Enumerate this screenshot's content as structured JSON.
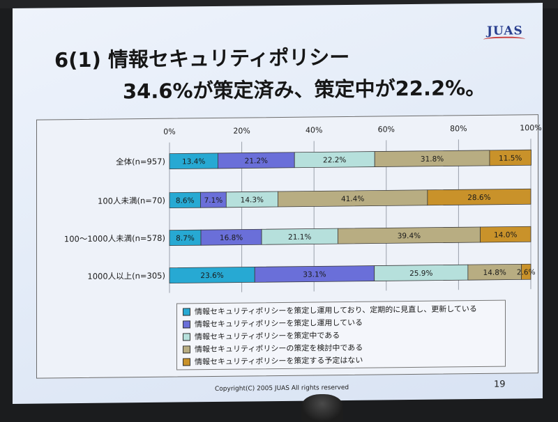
{
  "slide": {
    "title_line1": "6(1) 情報セキュリティポリシー",
    "title_line2": "34.6%が策定済み、策定中が22.2%。",
    "logo": "JUAS",
    "footer": "Copyright(C) 2005 JUAS All rights reserved",
    "page_number": "19"
  },
  "colors": {
    "series": [
      "#27a9d3",
      "#6a6fd9",
      "#b6e0dc",
      "#b8ad82",
      "#c9922a"
    ],
    "frame_bg": "#eef2f9",
    "slide_bg": "#e4ecf8"
  },
  "chart_data": {
    "type": "bar",
    "orientation": "horizontal",
    "stacked": true,
    "categories": [
      "全体(n=957)",
      "100人未満(n=70)",
      "100〜1000人未満(n=578)",
      "1000人以上(n=305)"
    ],
    "series": [
      {
        "name": "情報セキュリティポリシーを策定し運用しており、定期的に見直し、更新している",
        "values": [
          13.4,
          8.6,
          8.7,
          23.6
        ],
        "labels": [
          "13.4%",
          "8.6%",
          "8.7%",
          "23.6%"
        ]
      },
      {
        "name": "情報セキュリティポリシーを策定し運用している",
        "values": [
          21.2,
          7.1,
          16.8,
          33.1
        ],
        "labels": [
          "21.2%",
          "7.1%",
          "16.8%",
          "33.1%"
        ]
      },
      {
        "name": "情報セキュリティポリシーを策定中である",
        "values": [
          22.2,
          14.3,
          21.1,
          25.9
        ],
        "labels": [
          "22.2%",
          "14.3%",
          "21.1%",
          "25.9%"
        ]
      },
      {
        "name": "情報セキュリティポリシーの策定を検討中である",
        "values": [
          31.8,
          41.4,
          39.4,
          14.8
        ],
        "labels": [
          "31.8%",
          "41.4%",
          "39.4%",
          "14.8%"
        ]
      },
      {
        "name": "情報セキュリティポリシーを策定する予定はない",
        "values": [
          11.5,
          28.6,
          14.0,
          2.6
        ],
        "labels": [
          "11.5%",
          "28.6%",
          "14.0%",
          "2.6%"
        ]
      }
    ],
    "x_ticks": [
      "0%",
      "20%",
      "40%",
      "60%",
      "80%",
      "100%"
    ],
    "xlim": [
      0,
      100
    ],
    "grid": true,
    "legend_position": "bottom-center"
  }
}
